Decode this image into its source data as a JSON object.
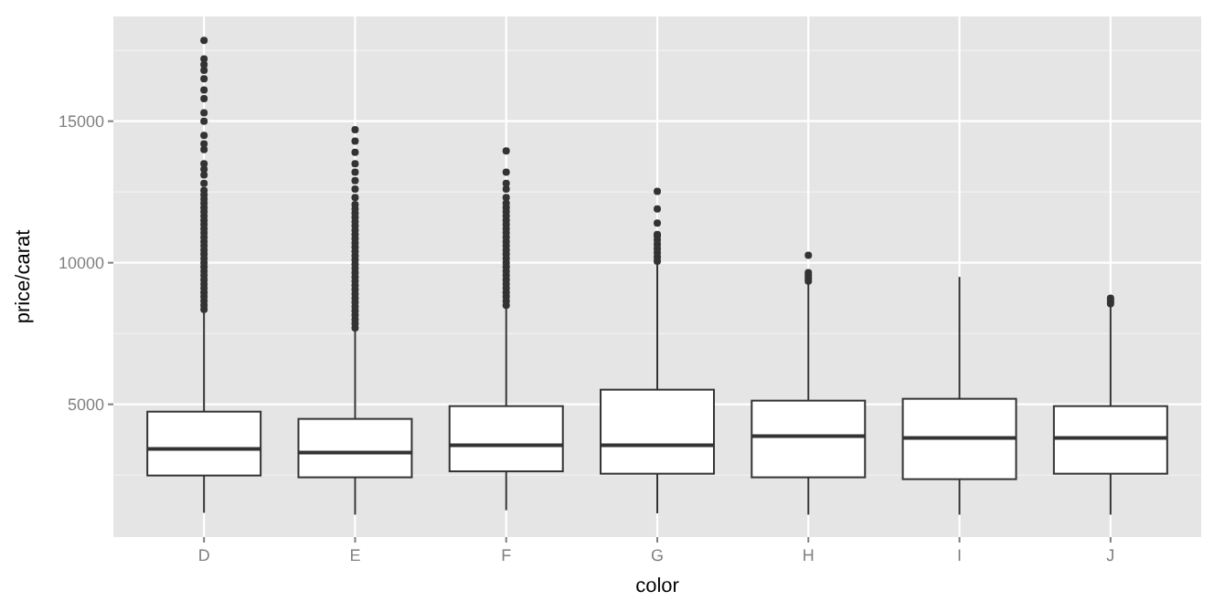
{
  "chart_data": {
    "type": "box",
    "xlabel": "color",
    "ylabel": "price/carat",
    "categories": [
      "D",
      "E",
      "F",
      "G",
      "H",
      "I",
      "J"
    ],
    "ylim": [
      310,
      18700
    ],
    "yticks": [
      5000,
      10000,
      15000
    ],
    "grid": true,
    "boxes": [
      {
        "low": 1168,
        "q1": 2484,
        "median": 3426,
        "q3": 4740,
        "high": 8265,
        "outliers": [
          8350,
          8500,
          8650,
          8800,
          8950,
          9100,
          9250,
          9400,
          9550,
          9700,
          9850,
          10000,
          10150,
          10300,
          10450,
          10600,
          10750,
          10900,
          11050,
          11200,
          11350,
          11500,
          11650,
          11800,
          11950,
          12100,
          12250,
          12400,
          12550,
          12800,
          13100,
          13300,
          13500,
          14000,
          14200,
          14500,
          15000,
          15300,
          15800,
          16100,
          16500,
          16800,
          17000,
          17200,
          17850
        ]
      },
      {
        "low": 1103,
        "q1": 2420,
        "median": 3297,
        "q3": 4484,
        "high": 7600,
        "outliers": [
          7700,
          7850,
          8000,
          8150,
          8300,
          8450,
          8600,
          8750,
          8900,
          9050,
          9200,
          9350,
          9500,
          9650,
          9800,
          9950,
          10100,
          10250,
          10400,
          10550,
          10700,
          10850,
          11000,
          11150,
          11300,
          11450,
          11600,
          11750,
          11900,
          12050,
          12300,
          12600,
          12900,
          13200,
          13500,
          13900,
          14300,
          14700
        ]
      },
      {
        "low": 1258,
        "q1": 2632,
        "median": 3555,
        "q3": 4935,
        "high": 8419,
        "outliers": [
          8500,
          8650,
          8800,
          8950,
          9100,
          9250,
          9400,
          9550,
          9700,
          9850,
          10000,
          10150,
          10300,
          10450,
          10600,
          10750,
          10900,
          11050,
          11200,
          11350,
          11500,
          11650,
          11800,
          11950,
          12100,
          12300,
          12600,
          12800,
          13200,
          13950
        ]
      },
      {
        "low": 1148,
        "q1": 2548,
        "median": 3555,
        "q3": 5516,
        "high": 9980,
        "outliers": [
          10050,
          10200,
          10350,
          10500,
          10650,
          10800,
          10950,
          11000,
          11400,
          11900,
          12520
        ]
      },
      {
        "low": 1103,
        "q1": 2420,
        "median": 3877,
        "q3": 5129,
        "high": 9277,
        "outliers": [
          9350,
          9450,
          9550,
          9650,
          10260
        ]
      },
      {
        "low": 1103,
        "q1": 2355,
        "median": 3813,
        "q3": 5194,
        "high": 9500
      },
      {
        "low": 1103,
        "q1": 2548,
        "median": 3813,
        "q3": 4935,
        "high": 8450,
        "outliers": [
          8550,
          8650,
          8750
        ]
      }
    ]
  }
}
